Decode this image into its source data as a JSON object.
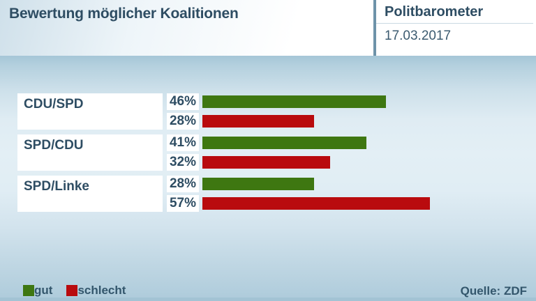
{
  "header": {
    "title": "Bewertung möglicher Koalitionen",
    "program": "Politbarometer",
    "date": "17.03.2017"
  },
  "chart_data": {
    "type": "bar",
    "orientation": "horizontal",
    "title": "Bewertung möglicher Koalitionen",
    "categories": [
      "CDU/SPD",
      "SPD/CDU",
      "SPD/Linke"
    ],
    "series": [
      {
        "name": "gut",
        "color": "#3e7711",
        "values": [
          46,
          41,
          28
        ],
        "display": [
          "46%",
          "41%",
          "28%"
        ]
      },
      {
        "name": "schlecht",
        "color": "#b90b0e",
        "values": [
          28,
          32,
          57
        ],
        "display": [
          "28%",
          "32%",
          "57%"
        ]
      }
    ],
    "unit": "%",
    "xlim": [
      0,
      68
    ],
    "grid": false,
    "legend_position": "bottom-left"
  },
  "legend": {
    "items": [
      {
        "label": "gut",
        "color": "#3e7711"
      },
      {
        "label": "schlecht",
        "color": "#b90b0e"
      }
    ]
  },
  "footer": {
    "source": "Quelle: ZDF"
  }
}
